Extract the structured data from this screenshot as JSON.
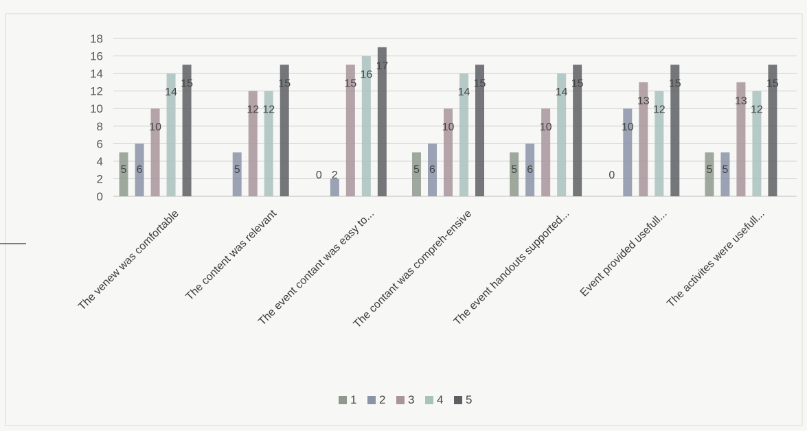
{
  "chart_data": {
    "type": "bar",
    "title": "",
    "xlabel": "",
    "ylabel": "",
    "ylim": [
      0,
      18
    ],
    "yticks": [
      0,
      2,
      4,
      6,
      8,
      10,
      12,
      14,
      16,
      18
    ],
    "grid": true,
    "legend_position": "bottom",
    "categories": [
      "The venew was comfortable",
      "The content was relevant",
      "The event contant was easy to...",
      "The contant was compreh-ensive",
      "The event handouts supported...",
      "Event provided usefull...",
      "The activites were usefull..."
    ],
    "series": [
      {
        "name": "1",
        "color": "#8f9a8c",
        "values": [
          5,
          0,
          0,
          5,
          5,
          0,
          5
        ]
      },
      {
        "name": "2",
        "color": "#8b93a8",
        "values": [
          6,
          5,
          2,
          6,
          6,
          10,
          5
        ]
      },
      {
        "name": "3",
        "color": "#a8949b",
        "values": [
          10,
          12,
          15,
          10,
          10,
          13,
          13
        ]
      },
      {
        "name": "4",
        "color": "#a9c2be",
        "values": [
          14,
          12,
          16,
          14,
          14,
          12,
          12
        ]
      },
      {
        "name": "5",
        "color": "#5d5f63",
        "values": [
          15,
          15,
          17,
          15,
          15,
          15,
          15
        ]
      }
    ],
    "data_labels": [
      [
        "5",
        "6",
        "10",
        "14",
        "15"
      ],
      [
        "",
        "5",
        "12",
        "12",
        "15"
      ],
      [
        "0",
        "2",
        "15",
        "16",
        "17"
      ],
      [
        "5",
        "6",
        "10",
        "14",
        "15"
      ],
      [
        "5",
        "6",
        "10",
        "14",
        "15"
      ],
      [
        "0",
        "10",
        "13",
        "12",
        "15"
      ],
      [
        "5",
        "5",
        "13",
        "12",
        "15"
      ]
    ]
  }
}
